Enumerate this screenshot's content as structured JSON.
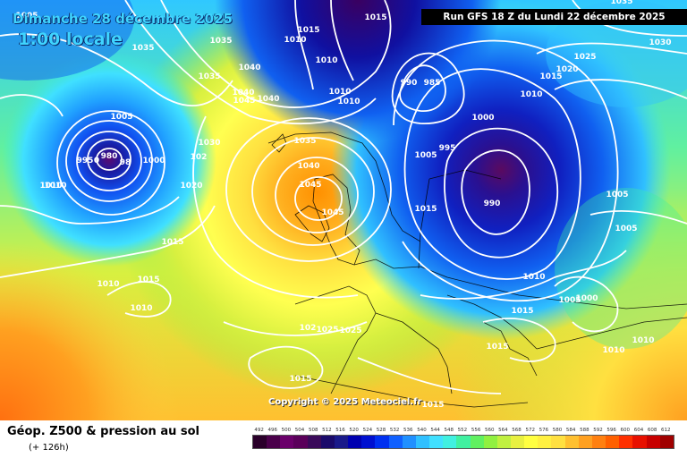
{
  "header": {
    "valid_date": "Dimanche 28 décembre 2025",
    "local_time": "1:00 locale",
    "run_info": "Run GFS 18 Z du Lundi 22 décembre 2025"
  },
  "footer": {
    "product": "Géop. Z500 & pression au sol",
    "lead_time": "(+ 126h)",
    "copyright": "Copyright © 2025 Meteociel.fr"
  },
  "legend": {
    "values": [
      "492",
      "496",
      "500",
      "504",
      "508",
      "512",
      "516",
      "520",
      "524",
      "528",
      "532",
      "536",
      "540",
      "544",
      "548",
      "552",
      "556",
      "560",
      "564",
      "568",
      "572",
      "576",
      "580",
      "584",
      "588",
      "592",
      "596",
      "600",
      "604",
      "608",
      "612"
    ],
    "colors": [
      "#2a002a",
      "#4a004a",
      "#6a006a",
      "#5a005a",
      "#3a0a5a",
      "#1a0a6a",
      "#1a1a8a",
      "#0000b0",
      "#0010d0",
      "#0030f0",
      "#1060ff",
      "#2090ff",
      "#30c0ff",
      "#40e0ff",
      "#40f0e0",
      "#40f0a0",
      "#60f060",
      "#90f040",
      "#c0f040",
      "#e8f040",
      "#ffff40",
      "#fff040",
      "#ffe040",
      "#ffc030",
      "#ffa020",
      "#ff8010",
      "#ff6000",
      "#ff3000",
      "#e81000",
      "#c80000",
      "#a00000"
    ]
  },
  "map": {
    "isobar_labels": [
      {
        "text": "1005"
      },
      {
        "text": "1035"
      },
      {
        "text": "1035"
      },
      {
        "text": "1035"
      },
      {
        "text": "1010"
      },
      {
        "text": "1015"
      },
      {
        "text": "1015"
      },
      {
        "text": "1010"
      },
      {
        "text": "1010"
      },
      {
        "text": "1040"
      },
      {
        "text": "1040"
      },
      {
        "text": "1045"
      },
      {
        "text": "1040"
      },
      {
        "text": "1010"
      },
      {
        "text": "1010"
      },
      {
        "text": "1005"
      },
      {
        "text": "980"
      },
      {
        "text": "995"
      },
      {
        "text": "0"
      },
      {
        "text": "98"
      },
      {
        "text": "1000"
      },
      {
        "text": "1010"
      },
      {
        "text": "1030"
      },
      {
        "text": "102"
      },
      {
        "text": "1020"
      },
      {
        "text": "1035"
      },
      {
        "text": "1040"
      },
      {
        "text": "1045"
      },
      {
        "text": "1045"
      },
      {
        "text": "990"
      },
      {
        "text": "985"
      },
      {
        "text": "1000"
      },
      {
        "text": "995"
      },
      {
        "text": "1005"
      },
      {
        "text": "990"
      },
      {
        "text": "1015"
      },
      {
        "text": "1010"
      },
      {
        "text": "1015"
      },
      {
        "text": "1020"
      },
      {
        "text": "1025"
      },
      {
        "text": "1030"
      },
      {
        "text": "1035"
      },
      {
        "text": "1005"
      },
      {
        "text": "1005"
      },
      {
        "text": "1010"
      },
      {
        "text": "1005"
      },
      {
        "text": "1000"
      },
      {
        "text": "1015"
      },
      {
        "text": "1015"
      },
      {
        "text": "1010"
      },
      {
        "text": "1010"
      },
      {
        "text": "1015"
      },
      {
        "text": "1010"
      },
      {
        "text": "1010"
      },
      {
        "text": "102"
      },
      {
        "text": "1025"
      },
      {
        "text": "1025"
      },
      {
        "text": "1015"
      },
      {
        "text": "1015"
      },
      {
        "text": "1015"
      }
    ]
  }
}
